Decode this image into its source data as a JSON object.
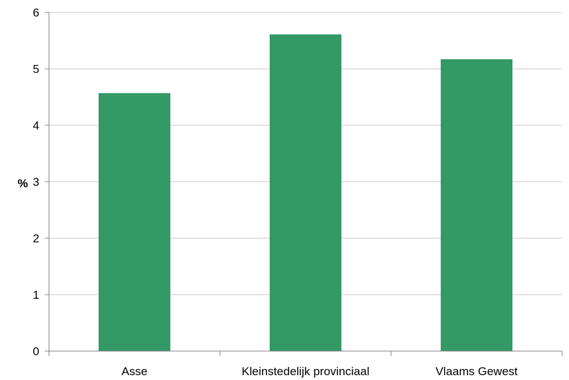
{
  "chart_data": {
    "type": "bar",
    "categories": [
      "Asse",
      "Kleinstedelijk provinciaal",
      "Vlaams Gewest"
    ],
    "series": [
      {
        "values": [
          4.57,
          5.61,
          5.17
        ]
      }
    ],
    "title": "",
    "xlabel": "",
    "ylabel": "%",
    "ylim": [
      0,
      6
    ],
    "yticks": [
      "0",
      "1",
      "2",
      "3",
      "4",
      "5",
      "6"
    ],
    "grid": true,
    "legend": "none",
    "colors": {
      "bar": "#339966",
      "grid": "#c8c8c8",
      "axis": "#808080"
    }
  }
}
